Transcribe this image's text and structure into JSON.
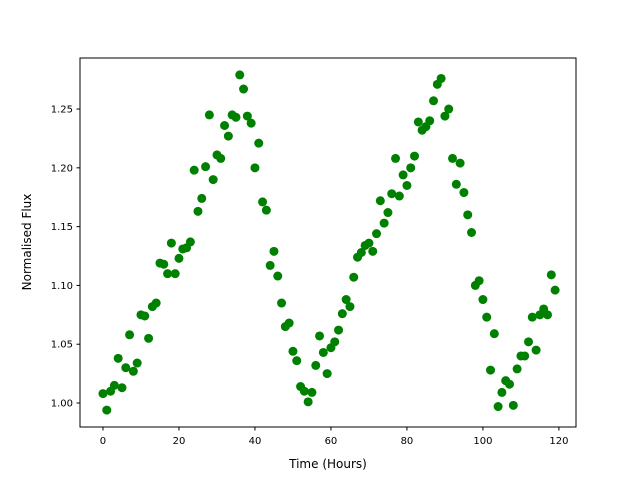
{
  "chart_data": {
    "type": "scatter",
    "title": "",
    "xlabel": "Time (Hours)",
    "ylabel": "Normalised Flux",
    "xlim": [
      -6.05,
      124.5
    ],
    "ylim": [
      0.9796,
      1.2934
    ],
    "xticks": [
      0,
      20,
      40,
      60,
      80,
      100,
      120
    ],
    "xtick_labels": [
      "0",
      "20",
      "40",
      "60",
      "80",
      "100",
      "120"
    ],
    "yticks": [
      1.0,
      1.05,
      1.1,
      1.15,
      1.2,
      1.25
    ],
    "ytick_labels": [
      "1.00",
      "1.05",
      "1.10",
      "1.15",
      "1.20",
      "1.25"
    ],
    "grid": false,
    "marker_color": "#008000",
    "x": [
      0,
      1,
      2,
      3,
      4,
      5,
      6,
      7,
      8,
      9,
      10,
      11,
      12,
      13,
      14,
      15,
      16,
      17,
      18,
      19,
      20,
      21,
      22,
      23,
      24,
      25,
      26,
      27,
      28,
      29,
      30,
      31,
      32,
      33,
      34,
      35,
      36,
      37,
      38,
      39,
      40,
      41,
      42,
      43,
      44,
      45,
      46,
      47,
      48,
      49,
      50,
      51,
      52,
      53,
      54,
      55,
      56,
      57,
      58,
      59,
      60,
      61,
      62,
      63,
      64,
      65,
      66,
      67,
      68,
      69,
      70,
      71,
      72,
      73,
      74,
      75,
      76,
      77,
      78,
      79,
      80,
      81,
      82,
      83,
      84,
      85,
      86,
      87,
      88,
      89,
      90,
      91,
      92,
      93,
      94,
      95,
      96,
      97,
      98,
      99,
      100,
      101,
      102,
      103,
      104,
      105,
      106,
      107,
      108,
      109,
      110,
      111,
      112,
      113,
      114,
      115,
      116,
      117,
      118,
      119
    ],
    "y": [
      1.008,
      0.994,
      1.01,
      1.015,
      1.038,
      1.013,
      1.03,
      1.058,
      1.027,
      1.034,
      1.075,
      1.074,
      1.055,
      1.082,
      1.085,
      1.119,
      1.118,
      1.11,
      1.136,
      1.11,
      1.123,
      1.131,
      1.132,
      1.137,
      1.198,
      1.163,
      1.174,
      1.201,
      1.245,
      1.19,
      1.211,
      1.208,
      1.236,
      1.227,
      1.245,
      1.243,
      1.279,
      1.267,
      1.244,
      1.238,
      1.2,
      1.221,
      1.171,
      1.164,
      1.117,
      1.129,
      1.108,
      1.085,
      1.065,
      1.068,
      1.044,
      1.036,
      1.014,
      1.01,
      1.001,
      1.009,
      1.032,
      1.057,
      1.043,
      1.025,
      1.047,
      1.052,
      1.062,
      1.076,
      1.088,
      1.082,
      1.107,
      1.124,
      1.128,
      1.134,
      1.136,
      1.129,
      1.144,
      1.172,
      1.153,
      1.162,
      1.178,
      1.208,
      1.176,
      1.194,
      1.185,
      1.2,
      1.21,
      1.239,
      1.232,
      1.235,
      1.24,
      1.257,
      1.271,
      1.276,
      1.244,
      1.25,
      1.208,
      1.186,
      1.204,
      1.179,
      1.16,
      1.145,
      1.1,
      1.104,
      1.088,
      1.073,
      1.028,
      1.059,
      0.997,
      1.009,
      1.019,
      1.016,
      0.998,
      1.029,
      1.04,
      1.04,
      1.052,
      1.073,
      1.045,
      1.075,
      1.08,
      1.075,
      1.109,
      1.096
    ]
  }
}
